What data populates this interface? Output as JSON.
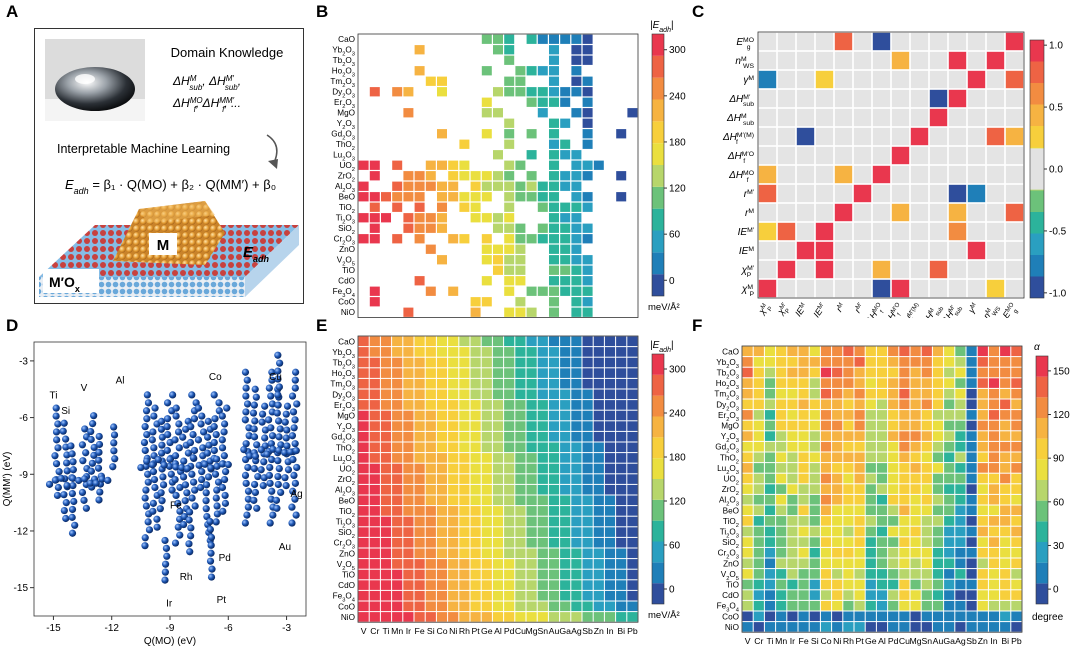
{
  "panel_labels": [
    "A",
    "B",
    "C",
    "D",
    "E",
    "F"
  ],
  "colors": {
    "scale": [
      "#2f4e9c",
      "#1f7fb8",
      "#2a9fc0",
      "#2cb39b",
      "#6cc27a",
      "#b7d66b",
      "#eadf3f",
      "#f7cf3c",
      "#f6b342",
      "#f28c41",
      "#ee6344",
      "#e9374e"
    ],
    "grid_empty": "#e4e4e4",
    "sphere": "#1d56b3",
    "metal": "#e5a03a",
    "substrate_red": "#c9403e",
    "substrate_blue": "#7fb7e0"
  },
  "panelA": {
    "domain_knowledge": "Domain Knowledge",
    "dk_line1": "ΔH",
    "dk_line1_sup1": "M",
    "dk_line1_sub1": "sub",
    "dk_line1_rest": ", ΔH",
    "dk_line1_sup2": "M′",
    "dk_line1_sub2": "sub",
    "dk_line1_end": ",",
    "dk_line2": "ΔH",
    "dk_line2_sup1": "MO",
    "dk_line2_sub1": "f",
    "dk_line2_rest": ", ΔH",
    "dk_line2_sup2": "MM′",
    "dk_line2_sub2": "f",
    "dk_line2_end": ", ...",
    "iml": "Interpretable Machine Learning",
    "equation": "E",
    "equation_sub": "adh",
    "equation_rest": " = β₁ · Q(MO) + β₂ · Q(MM′) + β₀",
    "label_M": "M",
    "label_substrate": "M′O",
    "label_substrate_sub": "x",
    "label_eadh": "E",
    "label_eadh_sub": "adh"
  },
  "oxides": [
    "CaO",
    "Yb₂O₃",
    "Tb₂O₃",
    "Ho₂O₃",
    "Tm₂O₃",
    "Dy₂O₃",
    "Er₂O₃",
    "MgO",
    "Y₂O₃",
    "Gd₂O₃",
    "ThO₂",
    "Lu₂O₃",
    "UO₂",
    "ZrO₂",
    "Al₂O₃",
    "BeO",
    "TiO₂",
    "Ti₂O₃",
    "SiO₂",
    "Cr₂O₃",
    "ZnO",
    "V₂O₅",
    "TiO",
    "CdO",
    "Fe₃O₄",
    "CoO",
    "NiO"
  ],
  "metals": [
    "V",
    "Cr",
    "Ti",
    "Mn",
    "Ir",
    "Fe",
    "Si",
    "Co",
    "Ni",
    "Rh",
    "Pt",
    "Ge",
    "Al",
    "Pd",
    "Cu",
    "Mg",
    "Sn",
    "Au",
    "Ga",
    "Ag",
    "Sb",
    "Zn",
    "In",
    "Bi",
    "Pb"
  ],
  "panelB": {
    "colorbar_title": "|E",
    "colorbar_title_sub": "adh",
    "colorbar_title_end": "|",
    "ticks": [
      "300",
      "240",
      "180",
      "120",
      "60",
      "0"
    ],
    "unit": "meV/Å²"
  },
  "panelC": {
    "features": [
      "E_g^MO",
      "n_WS^M",
      "γ^M",
      "ΔH_sub^M′",
      "ΔH_sub^M",
      "ΔH_f^M′(M)",
      "ΔH_f^M′O",
      "ΔH_f^MO",
      "r^M′",
      "r^M",
      "IE^M′",
      "IE^M",
      "χ_P^M′",
      "χ_P^M"
    ],
    "ticks": [
      "1.0",
      "0.5",
      "0.0",
      "-0.5",
      "-1.0"
    ]
  },
  "panelD": {
    "xlabel": "Q(MO) (eV)",
    "ylabel": "Q(MM′) (eV)",
    "xticks": [
      "-15",
      "-12",
      "-9",
      "-6",
      "-3"
    ],
    "yticks": [
      "-3",
      "-6",
      "-9",
      "-12",
      "-15"
    ],
    "labels": [
      "Ti",
      "Si",
      "V",
      "Al",
      "Co",
      "Cu",
      "Fe",
      "Ag",
      "Au",
      "Pd",
      "Rh",
      "Ir",
      "Pt"
    ]
  },
  "panelE": {
    "colorbar_title": "|E",
    "colorbar_title_sub": "adh",
    "colorbar_title_end": "|",
    "ticks": [
      "300",
      "240",
      "180",
      "120",
      "60",
      "0"
    ],
    "unit": "meV/Å²"
  },
  "panelF": {
    "colorbar_title": "α",
    "ticks": [
      "150",
      "120",
      "90",
      "60",
      "30",
      "0"
    ],
    "unit": "degree"
  },
  "chart_data": [
    {
      "type": "heatmap",
      "panel": "B",
      "rows": "oxides",
      "cols": "metals",
      "value": "|E_adh| (meV/Å²)",
      "range": [
        0,
        320
      ]
    },
    {
      "type": "heatmap",
      "panel": "C",
      "rows": "features",
      "cols": "features",
      "value": "correlation",
      "range": [
        -1,
        1
      ]
    },
    {
      "type": "scatter",
      "panel": "D",
      "xlabel": "Q(MO) (eV)",
      "ylabel": "Q(MM′) (eV)",
      "xlim": [
        -16,
        -2
      ],
      "ylim": [
        -16.5,
        -2
      ]
    },
    {
      "type": "heatmap",
      "panel": "E",
      "rows": "oxides",
      "cols": "metals",
      "value": "|E_adh| (meV/Å²)",
      "range": [
        0,
        320
      ]
    },
    {
      "type": "heatmap",
      "panel": "F",
      "rows": "oxides",
      "cols": "metals",
      "value": "α (degree)",
      "range": [
        -15,
        170
      ]
    }
  ]
}
